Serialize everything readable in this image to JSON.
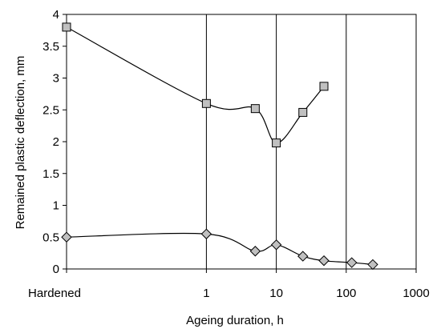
{
  "chart_data": {
    "type": "line",
    "x_label": "Ageing duration, h",
    "y_label": "Remained plastic deflection, mm",
    "log_x": true,
    "xlim": [
      0.01,
      1000
    ],
    "xticks": [
      {
        "value": 0.01,
        "label": "Hardened"
      },
      1,
      10,
      100,
      1000
    ],
    "ylim": [
      0,
      4
    ],
    "yticks": [
      0,
      0.5,
      1,
      1.5,
      2,
      2.5,
      3,
      3.5,
      4
    ],
    "grid_x": true,
    "series": [
      {
        "color": "#c0c0c0",
        "marker": "square",
        "x": [
          0.01,
          1,
          5,
          10,
          24,
          48
        ],
        "values": [
          3.8,
          2.6,
          2.52,
          1.98,
          2.46,
          2.87
        ]
      },
      {
        "color": "#c0c0c0",
        "marker": "diamond",
        "x": [
          0.01,
          1,
          5,
          10,
          24,
          48,
          120,
          240
        ],
        "values": [
          0.5,
          0.55,
          0.28,
          0.38,
          0.2,
          0.13,
          0.1,
          0.07
        ]
      }
    ]
  }
}
